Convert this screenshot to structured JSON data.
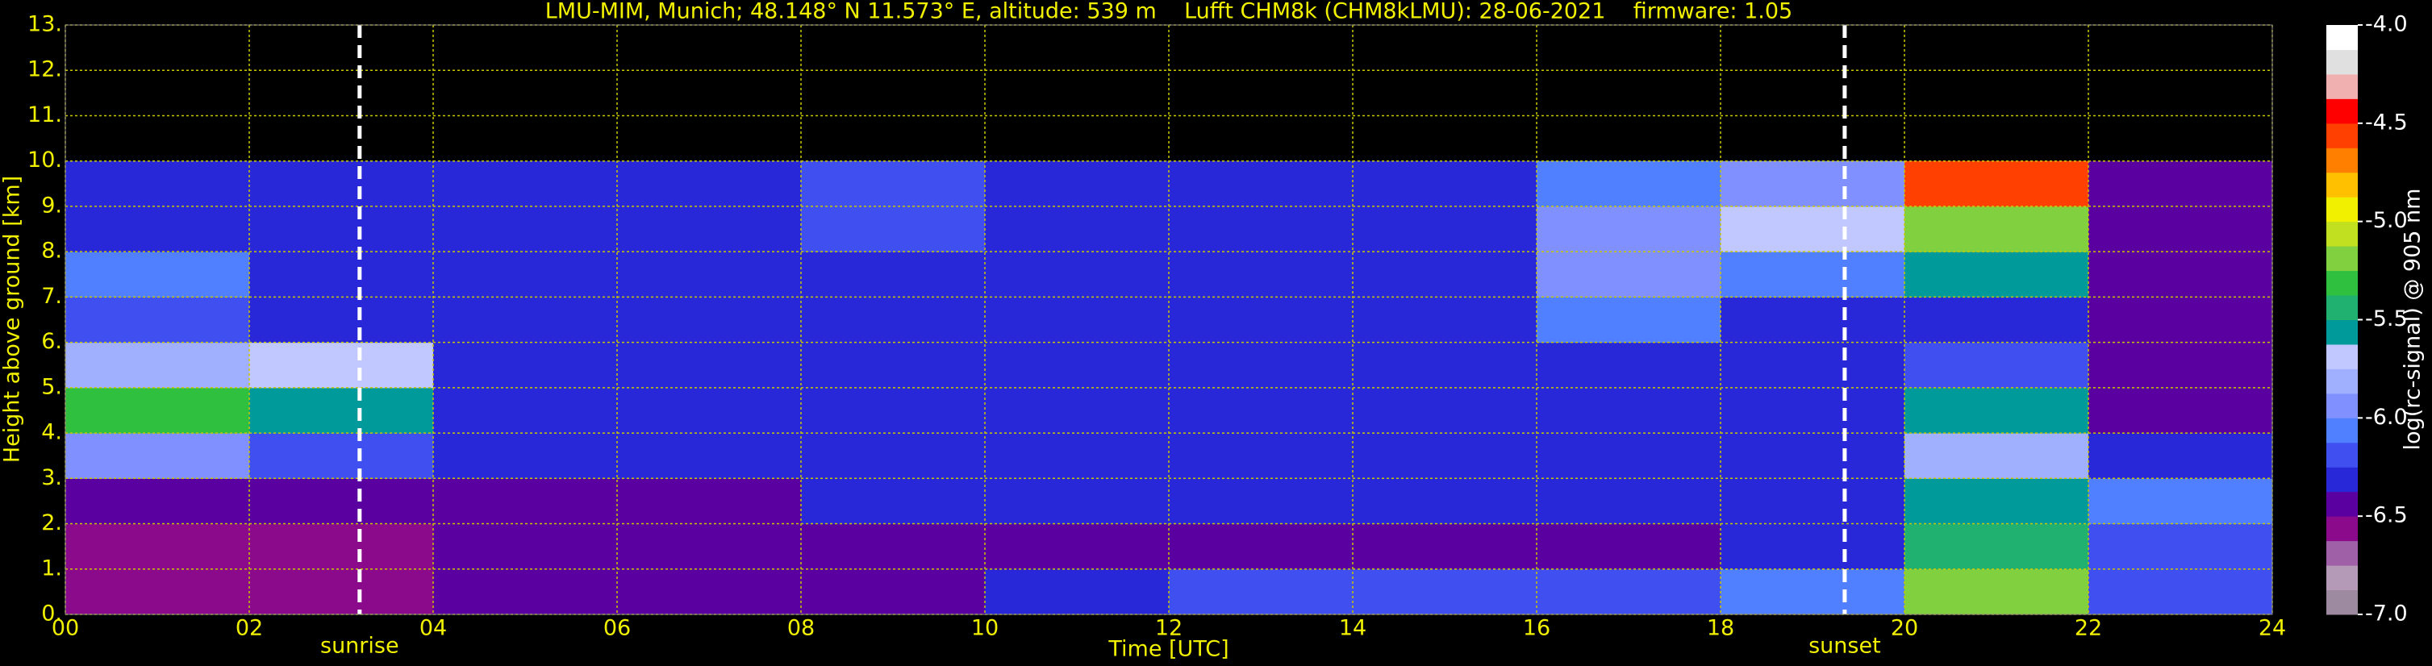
{
  "chart_data": {
    "type": "heatmap",
    "title": "LMU-MIM, Munich; 48.148° N 11.573° E, altitude: 539 m    Lufft CHM8k (CHM8kLMU): 28-06-2021    firmware: 1.05",
    "xlabel": "Time [UTC]",
    "ylabel": "Height above ground [km]",
    "colorbar_label": "log(rc-signal) @ 905 nm",
    "xlim": [
      0,
      24
    ],
    "ylim": [
      0,
      13
    ],
    "xticks": [
      {
        "value": 0,
        "label": "00"
      },
      {
        "value": 2,
        "label": "02"
      },
      {
        "value": 4,
        "label": "04"
      },
      {
        "value": 6,
        "label": "06"
      },
      {
        "value": 8,
        "label": "08"
      },
      10,
      12,
      14,
      16,
      18,
      20,
      22,
      24
    ],
    "yticks": [
      {
        "value": 0,
        "label": "0."
      },
      {
        "value": 1,
        "label": "1."
      },
      {
        "value": 2,
        "label": "2."
      },
      {
        "value": 3,
        "label": "3."
      },
      {
        "value": 4,
        "label": "4."
      },
      {
        "value": 5,
        "label": "5."
      },
      {
        "value": 6,
        "label": "6."
      },
      {
        "value": 7,
        "label": "7."
      },
      {
        "value": 8,
        "label": "8."
      },
      {
        "value": 9,
        "label": "9."
      },
      {
        "value": 10,
        "label": "10."
      },
      {
        "value": 11,
        "label": "11."
      },
      {
        "value": 12,
        "label": "12."
      },
      {
        "value": 13,
        "label": "13."
      }
    ],
    "grid": true,
    "grid_color": "#c8c800",
    "text_color": "#f0f000",
    "clim": [
      -7,
      -4
    ],
    "cticks": [
      {
        "value": -4,
        "label": "-4.0"
      },
      {
        "value": -4.5,
        "label": "-4.5"
      },
      {
        "value": -5,
        "label": "-5.0"
      },
      {
        "value": -5.5,
        "label": "-5.5"
      },
      {
        "value": -6,
        "label": "-6.0"
      },
      {
        "value": -6.5,
        "label": "-6.5"
      },
      {
        "value": -7,
        "label": "-7.0"
      }
    ],
    "colormap": [
      "#9e8aa0",
      "#b59ab8",
      "#a060a8",
      "#8b0a8b",
      "#5a00a0",
      "#2828d8",
      "#4050f0",
      "#5080ff",
      "#8090ff",
      "#a0b0ff",
      "#c0c8ff",
      "#009a9a",
      "#20b070",
      "#30c040",
      "#80d040",
      "#c0e020",
      "#f0f000",
      "#ffc000",
      "#ff8000",
      "#ff4000",
      "#ff0000",
      "#f0b0b0",
      "#e0e0e0",
      "#ffffff"
    ],
    "z_xrange": [
      0,
      24
    ],
    "z_yrange": [
      0,
      10
    ],
    "z": [
      [
        -6.6,
        -6.6,
        -6.5,
        -6.5,
        -6.4,
        -6.3,
        -6.2,
        -6.2,
        -6.2,
        -6.1,
        -5.2,
        -6.2
      ],
      [
        -6.6,
        -6.6,
        -6.5,
        -6.5,
        -6.5,
        -6.4,
        -6.4,
        -6.4,
        -6.4,
        -6.3,
        -5.4,
        -6.2
      ],
      [
        -6.4,
        -6.4,
        -6.4,
        -6.4,
        -6.3,
        -6.3,
        -6.3,
        -6.3,
        -6.3,
        -6.3,
        -5.6,
        -6.1
      ],
      [
        -5.9,
        -6.2,
        -6.3,
        -6.3,
        -6.3,
        -6.3,
        -6.3,
        -6.3,
        -6.3,
        -6.3,
        -5.8,
        -6.3
      ],
      [
        -5.3,
        -5.6,
        -6.3,
        -6.3,
        -6.3,
        -6.3,
        -6.3,
        -6.3,
        -6.3,
        -6.3,
        -5.6,
        -6.4
      ],
      [
        -5.8,
        -5.7,
        -6.3,
        -6.3,
        -6.3,
        -6.3,
        -6.3,
        -6.3,
        -6.3,
        -6.3,
        -6.2,
        -6.4
      ],
      [
        -6.2,
        -6.3,
        -6.3,
        -6.3,
        -6.3,
        -6.3,
        -6.3,
        -6.3,
        -6.1,
        -6.3,
        -6.3,
        -6.4
      ],
      [
        -6.1,
        -6.3,
        -6.3,
        -6.3,
        -6.3,
        -6.3,
        -6.3,
        -6.3,
        -5.9,
        -6.1,
        -5.6,
        -6.4
      ],
      [
        -6.3,
        -6.3,
        -6.3,
        -6.3,
        -6.2,
        -6.3,
        -6.3,
        -6.3,
        -6.0,
        -5.7,
        -5.2,
        -6.4
      ],
      [
        -6.3,
        -6.3,
        -6.3,
        -6.3,
        -6.2,
        -6.3,
        -6.3,
        -6.3,
        -6.1,
        -5.9,
        -4.6,
        -6.4
      ]
    ],
    "vlines": [
      {
        "x": 3.2,
        "label": "sunrise"
      },
      {
        "x": 19.35,
        "label": "sunset"
      }
    ]
  }
}
